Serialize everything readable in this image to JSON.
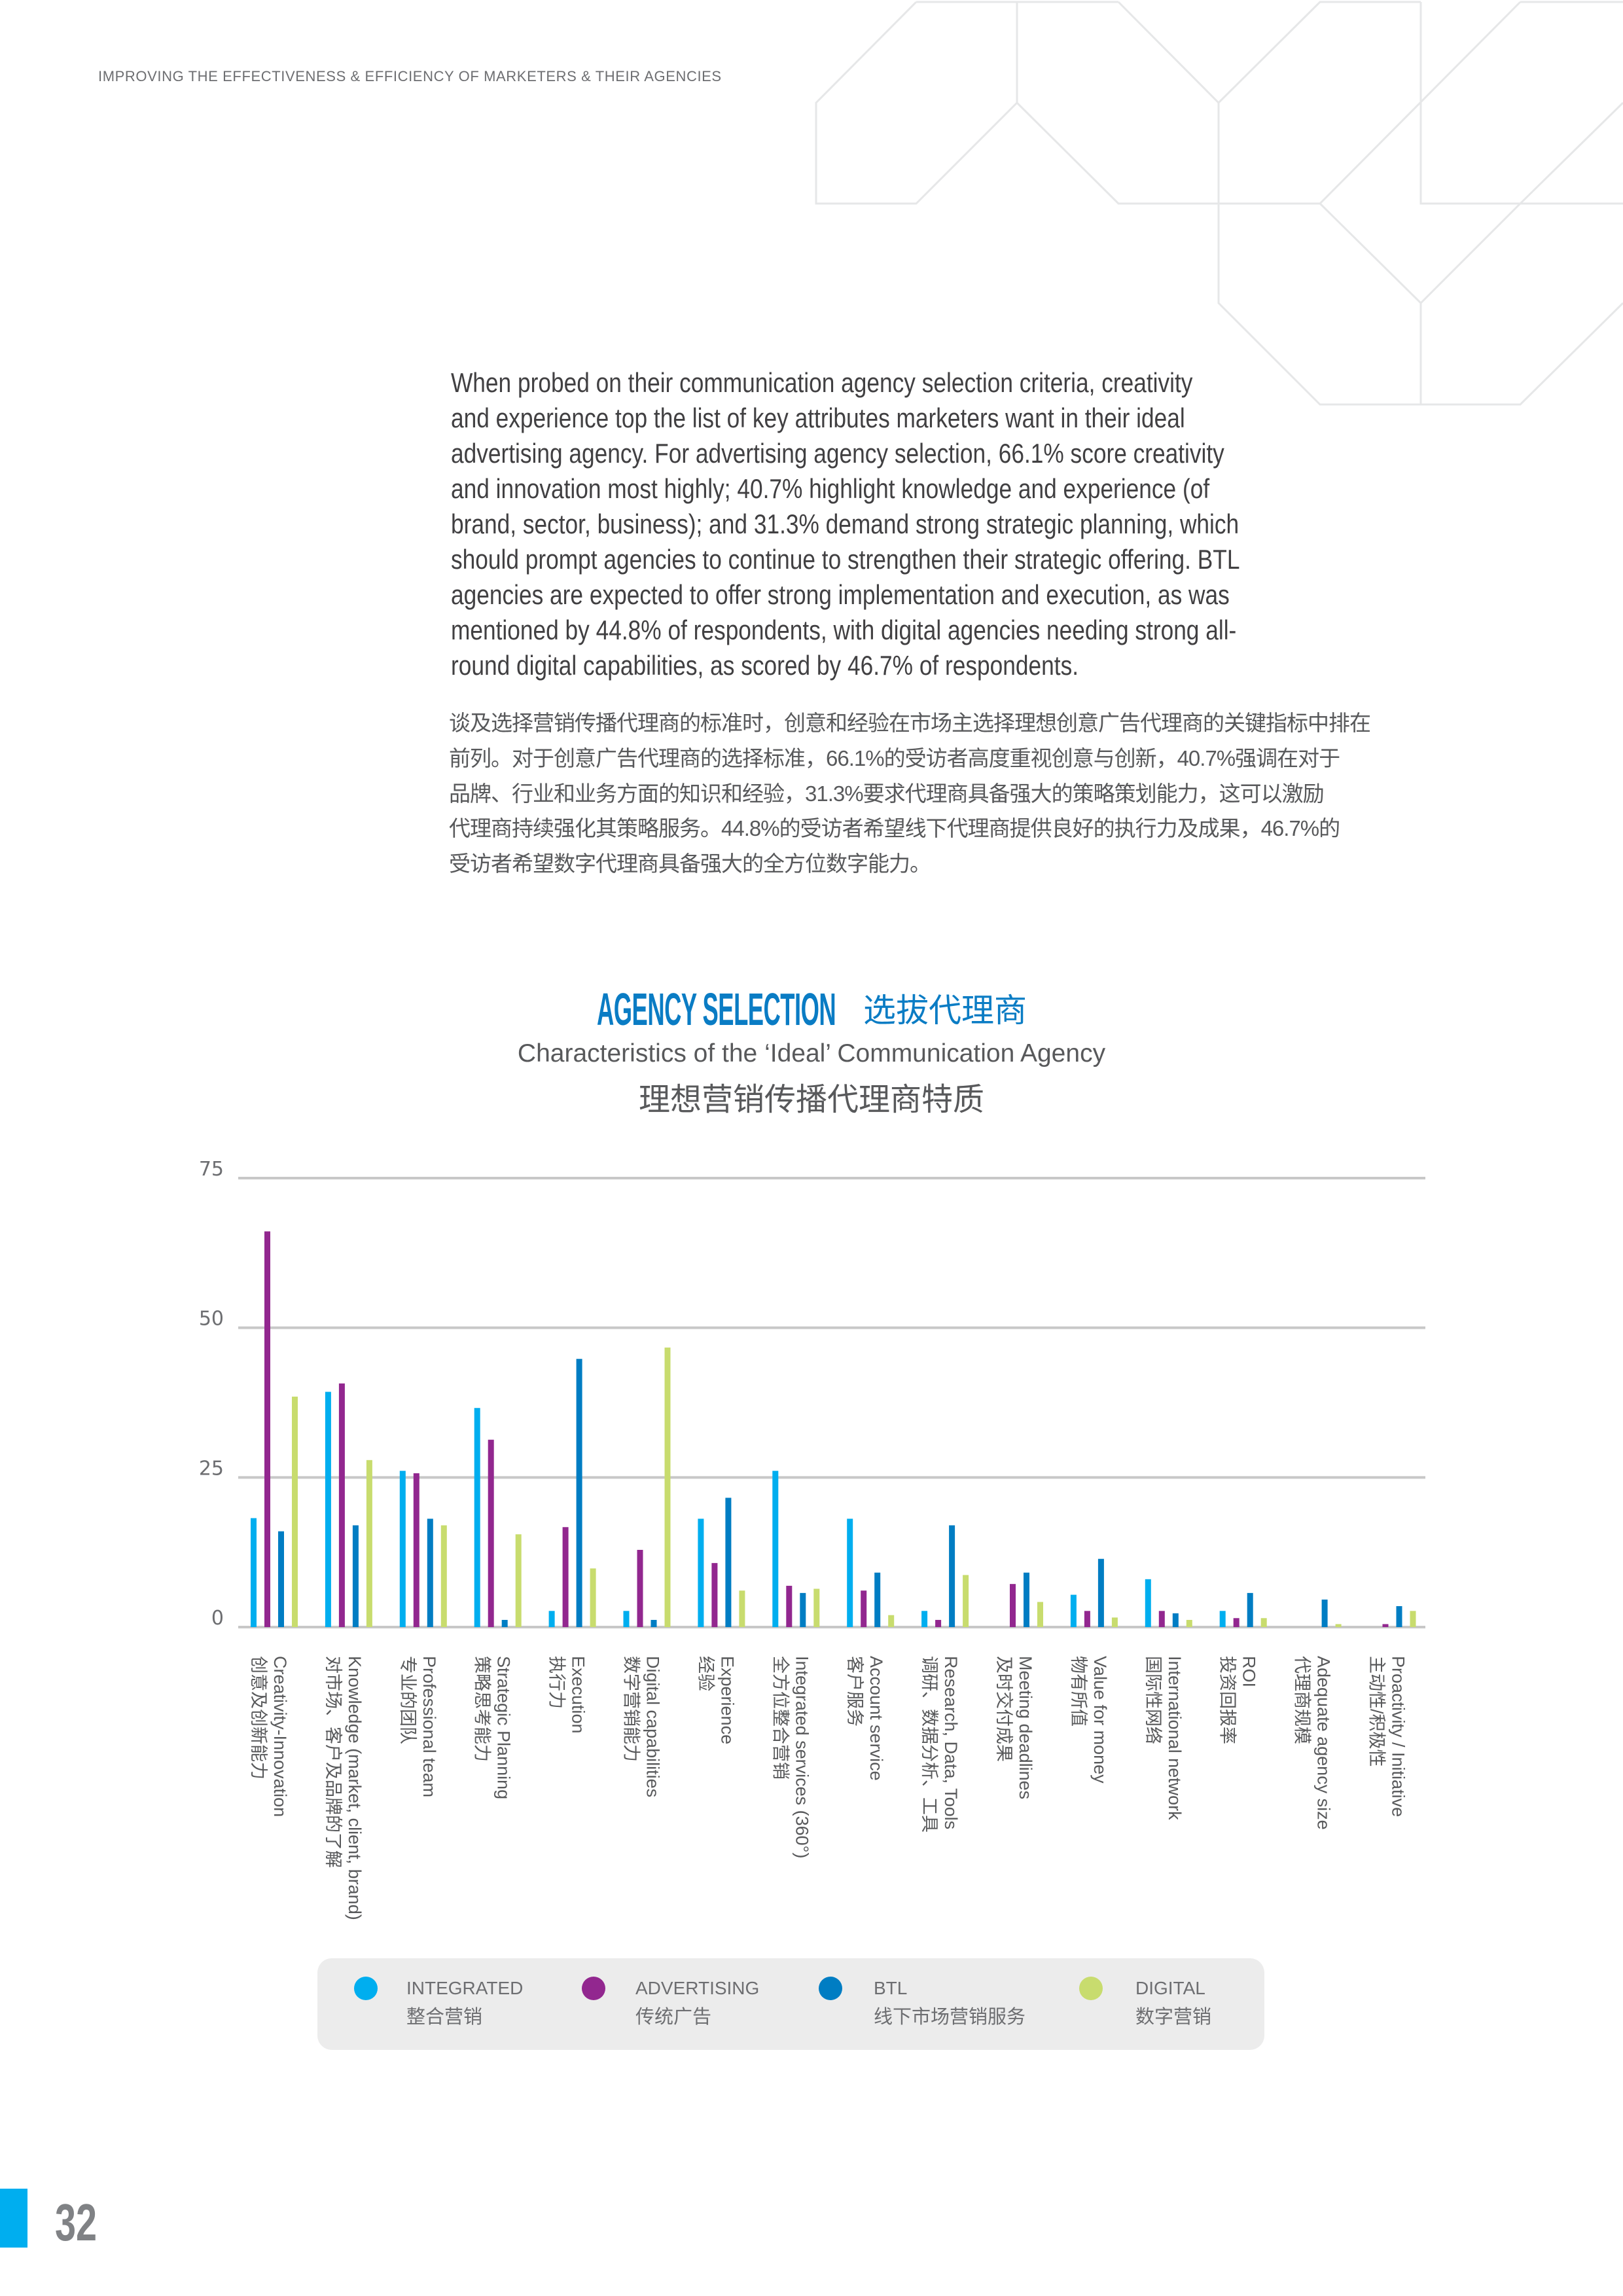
{
  "header": {
    "running_title": "IMPROVING THE EFFECTIVENESS & EFFICIENCY OF MARKETERS & THEIR AGENCIES"
  },
  "body": {
    "paragraph_en": [
      "When probed on their communication agency selection criteria, creativity",
      "and experience top the list of key attributes marketers want in their ideal",
      "advertising agency. For advertising agency selection, 66.1% score creativity",
      "and innovation most highly; 40.7% highlight knowledge and experience (of",
      "brand, sector, business); and 31.3% demand strong strategic planning, which",
      "should prompt agencies to continue to strengthen their strategic offering. BTL",
      "agencies are expected to offer strong implementation and execution, as was",
      "mentioned by 44.8% of respondents, with digital agencies needing strong all-",
      "round digital capabilities, as scored by 46.7% of respondents."
    ],
    "paragraph_zh": [
      "谈及选择营销传播代理商的标准时，创意和经验在市场主选择理想创意广告代理商的关键指标中排在",
      "前列。对于创意广告代理商的选择标准，66.1%的受访者高度重视创意与创新，40.7%强调在对于",
      "品牌、行业和业务方面的知识和经验，31.3%要求代理商具备强大的策略策划能力，这可以激励",
      "代理商持续强化其策略服务。44.8%的受访者希望线下代理商提供良好的执行力及成果，46.7%的",
      "受访者希望数字代理商具备强大的全方位数字能力。"
    ]
  },
  "chart_data": {
    "type": "bar",
    "title": "AGENCY SELECTION",
    "title_zh": "选拔代理商",
    "subtitle": "Characteristics of the ‘Ideal’ Communication Agency",
    "subtitle_zh": "理想营销传播代理商特质",
    "xlabel": "",
    "ylabel": "",
    "ylim": [
      0,
      75
    ],
    "yticks": [
      0,
      25,
      50,
      75
    ],
    "grid": true,
    "legend_placement": "bottom",
    "categories": [
      {
        "en": "Creativity-Innovation",
        "zh": "创意及创新能力"
      },
      {
        "en": "Knowledge (market, client, brand)",
        "zh": "对市场、客户及品牌的了解"
      },
      {
        "en": "Professional team",
        "zh": "专业的团队"
      },
      {
        "en": "Strategic Planning",
        "zh": "策略思考能力"
      },
      {
        "en": "Execution",
        "zh": "执行力"
      },
      {
        "en": "Digital capabilities",
        "zh": "数字营销能力"
      },
      {
        "en": "Experience",
        "zh": "经验"
      },
      {
        "en": "Integrated services (360°)",
        "zh": "全方位整合营销"
      },
      {
        "en": "Account service",
        "zh": "客户服务"
      },
      {
        "en": "Research, Data, Tools",
        "zh": "调研、数据分析、工具"
      },
      {
        "en": "Meeting deadlines",
        "zh": "及时交付成果"
      },
      {
        "en": "Value for money",
        "zh": "物有所值"
      },
      {
        "en": "International network",
        "zh": "国际性网络"
      },
      {
        "en": "ROI",
        "zh": "投资回报率"
      },
      {
        "en": "Adequate agency size",
        "zh": "代理商规模"
      },
      {
        "en": "Proactivity / Initiative",
        "zh": "主动性/积极性"
      }
    ],
    "series": [
      {
        "name": "INTEGRATED",
        "name_zh": "整合营销",
        "color": "#00aeef",
        "values": [
          18.2,
          39.3,
          26.1,
          36.6,
          2.7,
          2.7,
          18.1,
          26.1,
          18.1,
          2.7,
          0,
          5.4,
          8.0,
          2.7,
          0,
          0
        ]
      },
      {
        "name": "ADVERTISING",
        "name_zh": "传统广告",
        "color": "#92278f",
        "values": [
          66.1,
          40.7,
          25.7,
          31.3,
          16.7,
          12.9,
          10.7,
          6.9,
          6.1,
          1.2,
          7.2,
          2.7,
          2.7,
          1.5,
          0,
          0.5
        ]
      },
      {
        "name": "BTL",
        "name_zh": "线下市场营销服务",
        "color": "#007dc3",
        "values": [
          16.0,
          17.0,
          18.1,
          1.2,
          44.8,
          1.2,
          21.6,
          5.7,
          9.1,
          17.0,
          9.1,
          11.4,
          2.3,
          5.7,
          4.6,
          3.5
        ]
      },
      {
        "name": "DIGITAL",
        "name_zh": "数字营销",
        "color": "#c8dc6e",
        "values": [
          38.5,
          27.9,
          17.0,
          15.5,
          9.8,
          46.7,
          6.1,
          6.4,
          2.0,
          8.7,
          4.2,
          1.6,
          1.2,
          1.5,
          0.5,
          2.7
        ]
      }
    ]
  },
  "footer": {
    "page_number": "32",
    "accent_color": "#00aeef"
  },
  "colors": {
    "title_blue": "#0a7cc4",
    "grid": "#c8c8c8",
    "decoration": "#e6e7e8"
  }
}
